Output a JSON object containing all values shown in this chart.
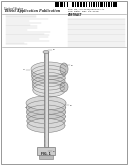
{
  "background_color": "#ffffff",
  "barcode_color": "#111111",
  "text_color": "#222222",
  "gray_text": "#666666",
  "light_gray": "#aaaaaa",
  "diagram_color": "#888888",
  "title_line1": "United States",
  "title_line2": "Patent Application Publication",
  "pub_label": "Pub. No.: US 2008/0307377 A1",
  "date_label": "Pub. Date:  Dec. 18, 2008",
  "invention_title": "HIGH EFFICIENCY COMPACT LINEAR CRYOCOOLER",
  "fig_label": "FIG. 1",
  "border_color": "#888888",
  "line_color": "#999999"
}
